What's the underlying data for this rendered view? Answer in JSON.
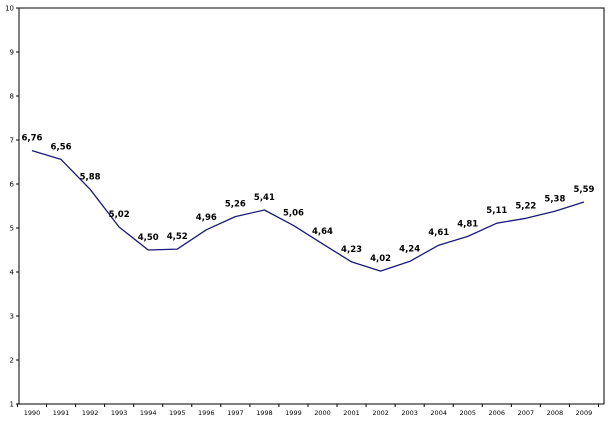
{
  "chart_data": {
    "type": "line",
    "title": "",
    "xlabel": "",
    "ylabel": "",
    "ylim": [
      1,
      10
    ],
    "yticks": [
      "1",
      "2",
      "3",
      "4",
      "5",
      "6",
      "7",
      "8",
      "9",
      "10"
    ],
    "categories": [
      "1990",
      "1991",
      "1992",
      "1993",
      "1994",
      "1995",
      "1996",
      "1997",
      "1998",
      "1999",
      "2000",
      "2001",
      "2002",
      "2003",
      "2004",
      "2005",
      "2006",
      "2007",
      "2008",
      "2009"
    ],
    "series": [
      {
        "name": "",
        "color": "#1a1a7a",
        "values": [
          6.76,
          6.56,
          5.88,
          5.02,
          4.5,
          4.52,
          4.96,
          5.26,
          5.41,
          5.06,
          4.64,
          4.23,
          4.02,
          4.24,
          4.61,
          4.81,
          5.11,
          5.22,
          5.38,
          5.59
        ],
        "labels": [
          "6,76",
          "6,56",
          "5,88",
          "5,02",
          "4,50",
          "4,52",
          "4,96",
          "5,26",
          "5,41",
          "5,06",
          "4,64",
          "4,23",
          "4,02",
          "4,24",
          "4,61",
          "4,81",
          "5,11",
          "5,22",
          "5,38",
          "5,59"
        ]
      }
    ],
    "grid": false,
    "legend": "none"
  }
}
